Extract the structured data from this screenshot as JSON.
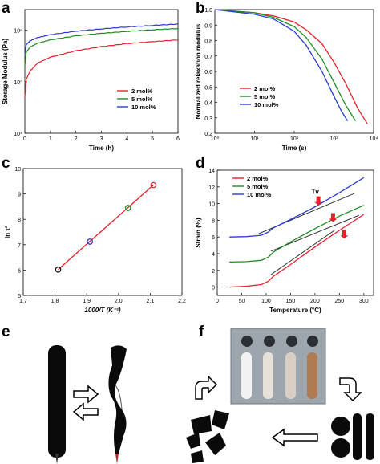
{
  "panels": {
    "a": "a",
    "b": "b",
    "c": "c",
    "d": "d",
    "e": "e",
    "f": "f"
  },
  "colors": {
    "red": "#e8202a",
    "green": "#1e8c23",
    "blue": "#2a3bd0",
    "black": "#111111"
  },
  "chart_data": [
    {
      "panel": "a",
      "type": "line",
      "xlabel": "Time (h)",
      "ylabel": "Storage Modulus (Pa)",
      "xlim": [
        0,
        6
      ],
      "ylim_log10": [
        4,
        6.4
      ],
      "x_ticks": [
        "0",
        "1",
        "2",
        "3",
        "4",
        "5",
        "6"
      ],
      "y_ticks": [
        "10⁴",
        "10⁵",
        "10⁶"
      ],
      "legend_position": "middle-right",
      "series": [
        {
          "name": "2 mol%",
          "color": "red",
          "x": [
            0,
            0.05,
            0.2,
            0.5,
            1,
            2,
            3,
            4,
            5,
            6
          ],
          "y": [
            50000,
            110000,
            160000,
            230000,
            300000,
            400000,
            480000,
            550000,
            600000,
            650000
          ]
        },
        {
          "name": "5 mol%",
          "color": "green",
          "x": [
            0,
            0.05,
            0.2,
            0.5,
            1,
            2,
            3,
            4,
            5,
            6
          ],
          "y": [
            200000,
            370000,
            470000,
            560000,
            650000,
            780000,
            870000,
            950000,
            1020000,
            1080000
          ]
        },
        {
          "name": "10 mol%",
          "color": "blue",
          "x": [
            0,
            0.05,
            0.2,
            0.5,
            1,
            2,
            3,
            4,
            5,
            6
          ],
          "y": [
            330000,
            520000,
            620000,
            720000,
            820000,
            960000,
            1060000,
            1160000,
            1240000,
            1320000
          ]
        }
      ]
    },
    {
      "panel": "b",
      "type": "line",
      "xlabel": "Time (s)",
      "ylabel": "Normalized relaxation modulus",
      "xlim_log10": [
        0,
        4
      ],
      "ylim": [
        0.2,
        1.0
      ],
      "x_ticks": [
        "10⁰",
        "10¹",
        "10²",
        "10³",
        "10⁴"
      ],
      "y_ticks": [
        "0.2",
        "0.3",
        "0.4",
        "0.5",
        "0.6",
        "0.7",
        "0.8",
        "0.9",
        "1.0"
      ],
      "legend_position": "middle-left",
      "series": [
        {
          "name": "2 mol%",
          "color": "red",
          "x": [
            1,
            10,
            30,
            100,
            200,
            500,
            1000,
            2000,
            4000,
            7000
          ],
          "y": [
            1.0,
            0.98,
            0.96,
            0.92,
            0.87,
            0.78,
            0.66,
            0.52,
            0.36,
            0.26
          ]
        },
        {
          "name": "5 mol%",
          "color": "green",
          "x": [
            1,
            10,
            30,
            100,
            200,
            500,
            1000,
            2000,
            3500
          ],
          "y": [
            1.0,
            0.98,
            0.95,
            0.89,
            0.82,
            0.68,
            0.53,
            0.38,
            0.28
          ]
        },
        {
          "name": "10 mol%",
          "color": "blue",
          "x": [
            1,
            10,
            30,
            100,
            200,
            500,
            1000,
            1500,
            2200
          ],
          "y": [
            1.0,
            0.97,
            0.94,
            0.86,
            0.77,
            0.6,
            0.44,
            0.35,
            0.28
          ]
        }
      ]
    },
    {
      "panel": "c",
      "type": "scatter",
      "xlabel": "1000/T (K⁻¹)",
      "ylabel": "ln τ*",
      "xlim": [
        1.7,
        2.2
      ],
      "ylim": [
        5,
        10
      ],
      "x_ticks": [
        "1.7",
        "1.8",
        "1.9",
        "2.0",
        "2.1",
        "2.2"
      ],
      "y_ticks": [
        "5",
        "6",
        "7",
        "8",
        "9",
        "10"
      ],
      "points": [
        {
          "x": 1.81,
          "y": 6.02,
          "color": "black"
        },
        {
          "x": 1.91,
          "y": 7.12,
          "color": "blue"
        },
        {
          "x": 2.03,
          "y": 8.45,
          "color": "green"
        },
        {
          "x": 2.11,
          "y": 9.35,
          "color": "red"
        }
      ],
      "fit_line": {
        "x": [
          1.81,
          2.11
        ],
        "y": [
          6.02,
          9.35
        ],
        "color": "red"
      }
    },
    {
      "panel": "d",
      "type": "line",
      "xlabel": "Temperature (°C)",
      "ylabel": "Strain (%)",
      "xlim": [
        0,
        320
      ],
      "ylim": [
        -1,
        14
      ],
      "x_ticks": [
        "0",
        "50",
        "100",
        "150",
        "200",
        "250",
        "300"
      ],
      "y_ticks": [
        "0",
        "2",
        "4",
        "6",
        "8",
        "10",
        "12",
        "14"
      ],
      "legend_position": "top-left",
      "annotation": "Tv",
      "series": [
        {
          "name": "2 mol%",
          "color": "red",
          "x": [
            25,
            60,
            90,
            105,
            115,
            150,
            200,
            250,
            300
          ],
          "y": [
            0.0,
            0.1,
            0.3,
            0.7,
            1.3,
            2.7,
            4.8,
            6.8,
            8.7
          ]
        },
        {
          "name": "5 mol%",
          "color": "green",
          "x": [
            25,
            60,
            90,
            105,
            115,
            150,
            200,
            250,
            300
          ],
          "y": [
            3.0,
            3.05,
            3.2,
            3.6,
            4.2,
            5.4,
            7.0,
            8.5,
            9.8
          ]
        },
        {
          "name": "10 mol%",
          "color": "blue",
          "x": [
            25,
            60,
            90,
            105,
            115,
            150,
            200,
            250,
            300
          ],
          "y": [
            6.0,
            6.05,
            6.2,
            6.6,
            7.1,
            8.1,
            9.6,
            11.3,
            13.1
          ]
        }
      ],
      "tangent_lines": [
        {
          "x": [
            110,
            240
          ],
          "y": [
            1.5,
            6.8
          ]
        },
        {
          "x": [
            110,
            290
          ],
          "y": [
            4.3,
            8.6
          ]
        },
        {
          "x": [
            85,
            280
          ],
          "y": [
            6.4,
            11.2
          ]
        }
      ],
      "arrows": [
        {
          "x": 207,
          "y": 9.8
        },
        {
          "x": 237,
          "y": 7.8
        },
        {
          "x": 260,
          "y": 5.8
        }
      ]
    }
  ]
}
